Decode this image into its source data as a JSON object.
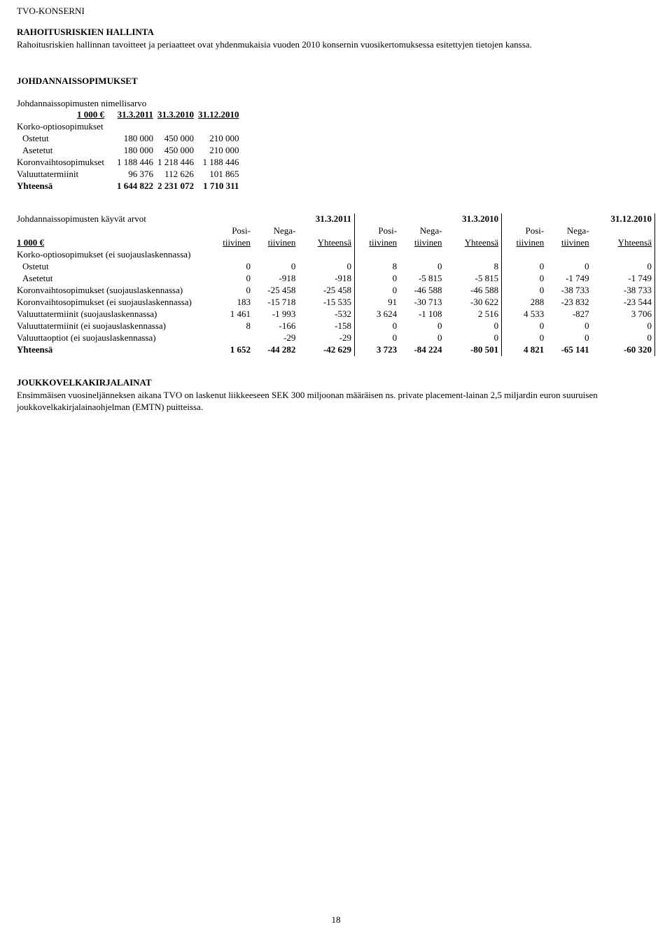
{
  "header": "TVO-KONSERNI",
  "sec1": {
    "title": "RAHOITUSRISKIEN HALLINTA",
    "text": "Rahoitusriskien hallinnan tavoitteet ja periaatteet ovat yhdenmukaisia vuoden 2010 konsernin vuosikertomuksessa esitettyjen tietojen kanssa."
  },
  "sec2": {
    "title": "JOHDANNAISSOPIMUKSET",
    "t1": {
      "caption": "Johdannaissopimusten nimellisarvo",
      "unit": "1 000 €",
      "cols": [
        "31.3.2011",
        "31.3.2010",
        "31.12.2010"
      ],
      "subhead": "Korko-optiosopimukset",
      "rows": [
        {
          "label": "Ostetut",
          "v": [
            "180 000",
            "450 000",
            "210 000"
          ]
        },
        {
          "label": "Asetetut",
          "v": [
            "180 000",
            "450 000",
            "210 000"
          ]
        },
        {
          "label": "Koronvaihtosopimukset",
          "v": [
            "1 188 446",
            "1 218 446",
            "1 188 446"
          ]
        },
        {
          "label": "Valuuttatermiinit",
          "v": [
            "96 376",
            "112 626",
            "101 865"
          ]
        }
      ],
      "total": {
        "label": "Yhteensä",
        "v": [
          "1 644 822",
          "2 231 072",
          "1 710 311"
        ]
      }
    },
    "t2": {
      "caption": "Johdannaissopimusten käyvät arvot",
      "cols_top": [
        "31.3.2011",
        "31.3.2010",
        "31.12.2010"
      ],
      "unit": "1 000 €",
      "sub": {
        "pos": "Posi-",
        "neg": "Nega-",
        "tiv": "tiivinen",
        "yht": "Yhteensä"
      },
      "subhead": "Korko-optiosopimukset (ei suojauslaskennassa)",
      "rows": [
        {
          "label": "Ostetut",
          "v": [
            "0",
            "0",
            "0",
            "8",
            "0",
            "8",
            "0",
            "0",
            "0"
          ]
        },
        {
          "label": "Asetetut",
          "v": [
            "0",
            "-918",
            "-918",
            "0",
            "-5 815",
            "-5 815",
            "0",
            "-1 749",
            "-1 749"
          ]
        },
        {
          "label": "Koronvaihtosopimukset (suojauslaskennassa)",
          "v": [
            "0",
            "-25 458",
            "-25 458",
            "0",
            "-46 588",
            "-46 588",
            "0",
            "-38 733",
            "-38 733"
          ]
        },
        {
          "label": "Koronvaihtosopimukset (ei suojauslaskennassa)",
          "v": [
            "183",
            "-15 718",
            "-15 535",
            "91",
            "-30 713",
            "-30 622",
            "288",
            "-23 832",
            "-23 544"
          ]
        },
        {
          "label": "Valuuttatermiinit (suojauslaskennassa)",
          "v": [
            "1 461",
            "-1 993",
            "-532",
            "3 624",
            "-1 108",
            "2 516",
            "4 533",
            "-827",
            "3 706"
          ]
        },
        {
          "label": "Valuuttatermiinit (ei suojauslaskennassa)",
          "v": [
            "8",
            "-166",
            "-158",
            "0",
            "0",
            "0",
            "0",
            "0",
            "0"
          ]
        },
        {
          "label": "Valuuttaoptiot (ei suojauslaskennassa)",
          "v": [
            "",
            "-29",
            "-29",
            "0",
            "0",
            "0",
            "0",
            "0",
            "0"
          ]
        }
      ],
      "total": {
        "label": "Yhteensä",
        "v": [
          "1 652",
          "-44 282",
          "-42 629",
          "3 723",
          "-84 224",
          "-80 501",
          "4 821",
          "-65 141",
          "-60 320"
        ]
      }
    }
  },
  "sec3": {
    "title": "JOUKKOVELKAKIRJALAINAT",
    "text": "Ensimmäisen vuosineljänneksen aikana TVO on laskenut liikkeeseen SEK 300 miljoonan määräisen ns. private placement-lainan 2,5 miljardin euron suuruisen joukkovelkakirjalainaohjelman (EMTN) puitteissa."
  },
  "page": "18"
}
